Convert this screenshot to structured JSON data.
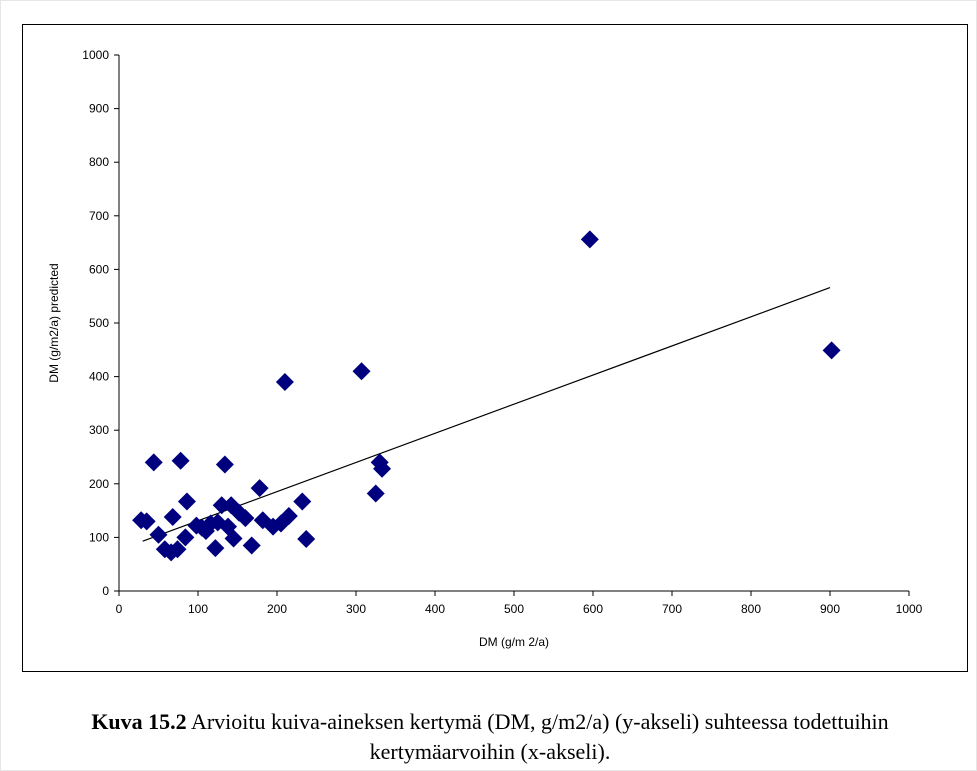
{
  "caption": {
    "label": "Kuva 15.2",
    "text": " Arvioitu kuiva-aineksen kertymä (DM, g/m2/a) (y-akseli) suhteessa todettuihin kertymäarvoihin (x-akseli)."
  },
  "chart_data": {
    "type": "scatter",
    "title": "",
    "xlabel": "DM (g/m 2/a)",
    "ylabel": "DM (g/m2/a) predicted",
    "xlim": [
      0,
      1000
    ],
    "ylim": [
      0,
      1000
    ],
    "x_ticks": [
      "0",
      "100",
      "200",
      "300",
      "400",
      "500",
      "600",
      "700",
      "800",
      "900",
      "1000"
    ],
    "y_ticks": [
      "0",
      "100",
      "200",
      "300",
      "400",
      "500",
      "600",
      "700",
      "800",
      "900",
      "1000"
    ],
    "grid": false,
    "legend": "none",
    "marker_color": "#00007F",
    "points": [
      {
        "x": 28,
        "y": 132
      },
      {
        "x": 35,
        "y": 130
      },
      {
        "x": 44,
        "y": 240
      },
      {
        "x": 50,
        "y": 105
      },
      {
        "x": 58,
        "y": 78
      },
      {
        "x": 66,
        "y": 72
      },
      {
        "x": 68,
        "y": 138
      },
      {
        "x": 74,
        "y": 78
      },
      {
        "x": 78,
        "y": 243
      },
      {
        "x": 84,
        "y": 100
      },
      {
        "x": 86,
        "y": 167
      },
      {
        "x": 98,
        "y": 122
      },
      {
        "x": 105,
        "y": 118
      },
      {
        "x": 110,
        "y": 112
      },
      {
        "x": 116,
        "y": 126
      },
      {
        "x": 122,
        "y": 80
      },
      {
        "x": 125,
        "y": 128
      },
      {
        "x": 130,
        "y": 160
      },
      {
        "x": 134,
        "y": 236
      },
      {
        "x": 138,
        "y": 120
      },
      {
        "x": 142,
        "y": 160
      },
      {
        "x": 145,
        "y": 98
      },
      {
        "x": 152,
        "y": 146
      },
      {
        "x": 160,
        "y": 136
      },
      {
        "x": 168,
        "y": 85
      },
      {
        "x": 178,
        "y": 192
      },
      {
        "x": 182,
        "y": 132
      },
      {
        "x": 195,
        "y": 120
      },
      {
        "x": 205,
        "y": 126
      },
      {
        "x": 210,
        "y": 390
      },
      {
        "x": 215,
        "y": 140
      },
      {
        "x": 232,
        "y": 167
      },
      {
        "x": 237,
        "y": 97
      },
      {
        "x": 307,
        "y": 410
      },
      {
        "x": 325,
        "y": 182
      },
      {
        "x": 330,
        "y": 240
      },
      {
        "x": 333,
        "y": 228
      },
      {
        "x": 596,
        "y": 656
      },
      {
        "x": 902,
        "y": 449
      }
    ],
    "trendline": {
      "x": [
        30,
        900
      ],
      "y": [
        93,
        566
      ]
    }
  }
}
